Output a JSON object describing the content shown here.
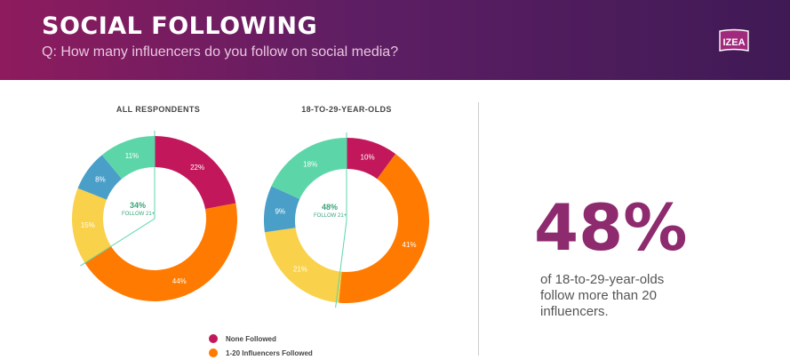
{
  "header": {
    "title": "SOCIAL FOLLOWING",
    "subtitle": "Q: How many influencers do you follow on social media?",
    "logo_text": "IZEA"
  },
  "colors": {
    "none_followed": "#c2185b",
    "influencers_1_20": "#ff7a00",
    "seg_15": "#f9d14a",
    "seg_8": "#4a9fc8",
    "seg_11": "#5cd6a8",
    "follow21_text": "#3aa57a",
    "stat": "#8e2a6e"
  },
  "chart_data": [
    {
      "type": "pie",
      "title": "ALL RESPONDENTS",
      "center_value": "34%",
      "center_label": "FOLLOW 21+",
      "slices": [
        {
          "label": "22%",
          "value": 22,
          "color": "#c2185b"
        },
        {
          "label": "44%",
          "value": 44,
          "color": "#ff7a00"
        },
        {
          "label": "15%",
          "value": 15,
          "color": "#f9d14a"
        },
        {
          "label": "8%",
          "value": 8,
          "color": "#4a9fc8"
        },
        {
          "label": "11%",
          "value": 11,
          "color": "#5cd6a8"
        }
      ]
    },
    {
      "type": "pie",
      "title": "18-TO-29-YEAR-OLDS",
      "center_value": "48%",
      "center_label": "FOLLOW 21+",
      "slices": [
        {
          "label": "10%",
          "value": 10,
          "color": "#c2185b"
        },
        {
          "label": "41%",
          "value": 41,
          "color": "#ff7a00"
        },
        {
          "label": "21%",
          "value": 21,
          "color": "#f9d14a"
        },
        {
          "label": "9%",
          "value": 9,
          "color": "#4a9fc8"
        },
        {
          "label": "18%",
          "value": 18,
          "color": "#5cd6a8"
        }
      ]
    }
  ],
  "legend": [
    {
      "label": "None Followed",
      "color": "#c2185b"
    },
    {
      "label": "1-20 Influencers Followed",
      "color": "#ff7a00"
    }
  ],
  "stat": {
    "value": "48%",
    "line1": "of 18-to-29-year-olds",
    "line2": "follow more than 20",
    "line3": "influencers."
  }
}
